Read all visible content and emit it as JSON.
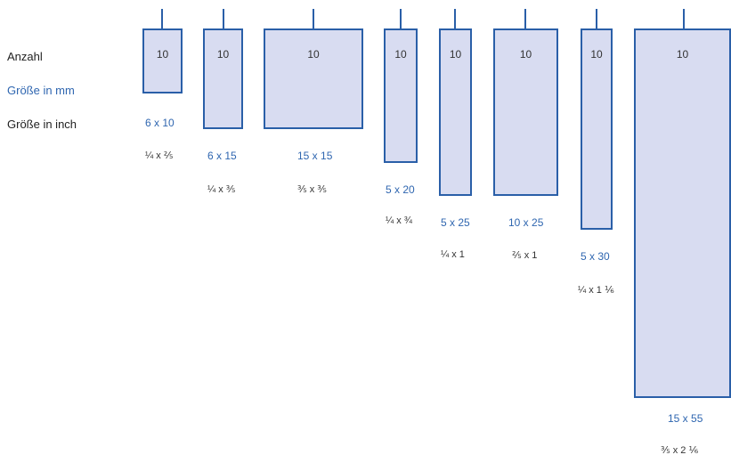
{
  "labels": {
    "count": "Anzahl",
    "size_mm": "Größe in mm",
    "size_inch": "Größe in inch"
  },
  "items": [
    {
      "count": "10",
      "mm": "6 x 10",
      "inch": "¼ x ⅖"
    },
    {
      "count": "10",
      "mm": "6 x 15",
      "inch": "¼ x ⅗"
    },
    {
      "count": "10",
      "mm": "15 x 15",
      "inch": "⅗ x ⅗"
    },
    {
      "count": "10",
      "mm": "5 x 20",
      "inch": "¼ x ¾"
    },
    {
      "count": "10",
      "mm": "5 x 25",
      "inch": "¼ x 1"
    },
    {
      "count": "10",
      "mm": "10 x 25",
      "inch": "⅖ x 1"
    },
    {
      "count": "10",
      "mm": "5 x 30",
      "inch": "¼ x 1 ⅙"
    },
    {
      "count": "10",
      "mm": "15 x 55",
      "inch": "⅗ x 2 ⅙"
    }
  ],
  "colors": {
    "border": "#2a5fa8",
    "fill": "#d8dcf1",
    "accent_text": "#2f66b0"
  }
}
